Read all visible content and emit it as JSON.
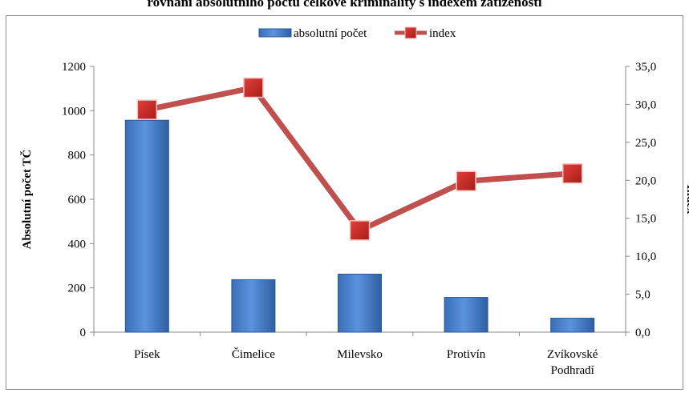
{
  "chart_data": {
    "type": "bar",
    "title": "rovnání absolutního počtu celkové kriminality s indexem zatíženosti",
    "categories": [
      "Písek",
      "Čimelice",
      "Milevsko",
      "Protivín",
      "Zvíkovské Podhradí"
    ],
    "series": [
      {
        "name": "absolutní počet",
        "type": "bar",
        "axis": "left",
        "color": "#4f81bd",
        "values": [
          957,
          237,
          262,
          157,
          63
        ]
      },
      {
        "name": "index",
        "type": "line",
        "axis": "right",
        "color": "#c0504d",
        "values": [
          29.3,
          32.2,
          13.4,
          19.9,
          20.9
        ]
      }
    ],
    "ylabel": "Absolutní počet TČ",
    "y2label": "Index",
    "ylim": [
      0,
      1200
    ],
    "y2lim": [
      0,
      35
    ],
    "yticks": [
      "0",
      "200",
      "400",
      "600",
      "800",
      "1000",
      "1200"
    ],
    "y2ticks": [
      "0,0",
      "5,0",
      "10,0",
      "15,0",
      "20,0",
      "25,0",
      "30,0",
      "35,0"
    ],
    "legend_position": "top",
    "grid": false
  }
}
